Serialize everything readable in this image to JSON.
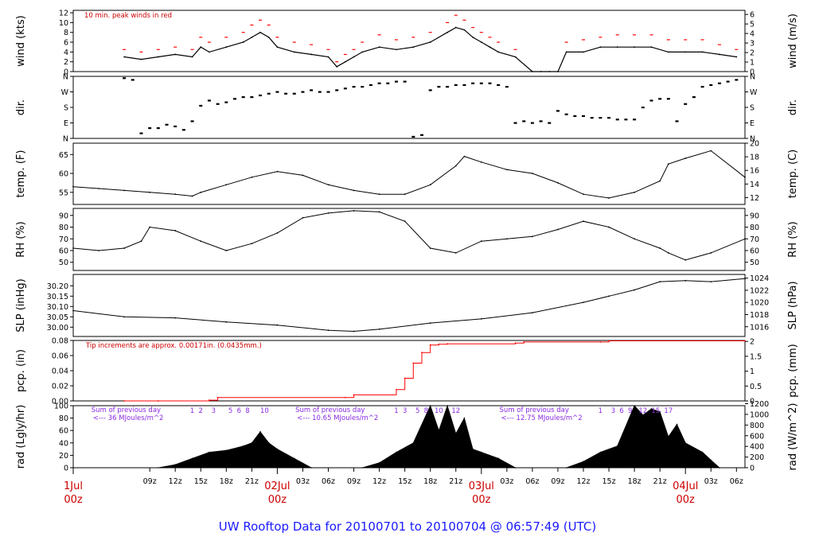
{
  "title": "UW Rooftop Data for 20100701  to  20100704 @ 06:57:49  (UTC)",
  "colors": {
    "series": "#000000",
    "peak": "#ff0000",
    "precip": "#ff0000",
    "note": "#cc0000",
    "purple": "#8a2be2",
    "title": "#1a1aff"
  },
  "x_axis": {
    "range_hours": [
      0,
      79
    ],
    "hour_ticks": [
      {
        "h": 9,
        "label": "09z"
      },
      {
        "h": 12,
        "label": "12z"
      },
      {
        "h": 15,
        "label": "15z"
      },
      {
        "h": 18,
        "label": "18z"
      },
      {
        "h": 21,
        "label": "21z"
      },
      {
        "h": 27,
        "label": "03z"
      },
      {
        "h": 30,
        "label": "06z"
      },
      {
        "h": 33,
        "label": "09z"
      },
      {
        "h": 36,
        "label": "12z"
      },
      {
        "h": 39,
        "label": "15z"
      },
      {
        "h": 42,
        "label": "18z"
      },
      {
        "h": 45,
        "label": "21z"
      },
      {
        "h": 51,
        "label": "03z"
      },
      {
        "h": 54,
        "label": "06z"
      },
      {
        "h": 57,
        "label": "09z"
      },
      {
        "h": 60,
        "label": "12z"
      },
      {
        "h": 63,
        "label": "15z"
      },
      {
        "h": 66,
        "label": "18z"
      },
      {
        "h": 69,
        "label": "21z"
      },
      {
        "h": 75,
        "label": "03z"
      },
      {
        "h": 78,
        "label": "06z"
      }
    ],
    "day_labels": [
      {
        "h": 0,
        "top": "1Jul",
        "bottom": "00z"
      },
      {
        "h": 24,
        "top": "02Jul",
        "bottom": "00z"
      },
      {
        "h": 48,
        "top": "03Jul",
        "bottom": "00z"
      },
      {
        "h": 72,
        "top": "04Jul",
        "bottom": "00z"
      }
    ]
  },
  "chart_data": [
    {
      "type": "line",
      "id": "wind",
      "ylabel": "wind (kts)",
      "ylabel_right": "wind (m/s)",
      "ylim": [
        0,
        12.5
      ],
      "yticks": [
        0,
        2,
        4,
        6,
        8,
        10,
        12
      ],
      "right_ylim": [
        0,
        6.43
      ],
      "right_yticks": [
        0,
        1,
        2,
        3,
        4,
        5,
        6
      ],
      "annotation": "10 min. peak winds in red",
      "x": [
        6,
        8,
        10,
        12,
        14,
        15,
        16,
        18,
        20,
        21,
        22,
        23,
        24,
        26,
        28,
        30,
        31,
        32,
        33,
        34,
        36,
        38,
        40,
        42,
        44,
        45,
        46,
        47,
        48,
        49,
        50,
        52,
        54,
        55,
        56,
        57,
        58,
        60,
        62,
        64,
        66,
        68,
        70,
        72,
        74,
        76,
        78
      ],
      "values": [
        3,
        2.5,
        3,
        3.5,
        3,
        5,
        4,
        5,
        6,
        7,
        8,
        7,
        5,
        4,
        3.5,
        3,
        1,
        2,
        3,
        4,
        5,
        4.5,
        5,
        6,
        8,
        9,
        8.5,
        7,
        6,
        5,
        4,
        3,
        0,
        0,
        0,
        0,
        4,
        4,
        5,
        5,
        5,
        5,
        4,
        4,
        4,
        3.5,
        3
      ],
      "peaks": [
        4.5,
        4,
        4.5,
        5,
        4.5,
        7,
        6,
        7,
        8,
        9.5,
        10.5,
        9.5,
        7,
        6,
        5.5,
        4.5,
        2,
        3.5,
        4.5,
        6,
        7.5,
        6.5,
        7,
        8,
        10,
        11.5,
        10.5,
        9,
        8,
        7,
        6,
        4.5,
        0,
        0,
        0,
        0,
        6,
        6.5,
        7,
        7.5,
        7.5,
        7.5,
        6.5,
        6.5,
        6.5,
        5.5,
        4.5
      ]
    },
    {
      "type": "scatter",
      "id": "dir",
      "ylabel": "dir.",
      "ylabel_right": "dir.",
      "ylim": [
        0,
        360
      ],
      "ytick_values": [
        0,
        90,
        180,
        270,
        360
      ],
      "ytick_labels": [
        "N",
        "E",
        "S",
        "W",
        "N"
      ],
      "x": [
        6,
        7,
        8,
        9,
        10,
        11,
        12,
        13,
        14,
        15,
        16,
        17,
        18,
        19,
        20,
        21,
        22,
        23,
        24,
        25,
        26,
        27,
        28,
        29,
        30,
        31,
        32,
        33,
        34,
        35,
        36,
        37,
        38,
        39,
        40,
        41,
        42,
        43,
        44,
        45,
        46,
        47,
        48,
        49,
        50,
        51,
        52,
        53,
        54,
        55,
        56,
        57,
        58,
        59,
        60,
        61,
        62,
        63,
        64,
        65,
        66,
        67,
        68,
        69,
        70,
        71,
        72,
        73,
        74,
        75,
        76,
        77,
        78
      ],
      "values": [
        350,
        340,
        30,
        60,
        60,
        80,
        70,
        50,
        100,
        190,
        220,
        200,
        210,
        230,
        240,
        240,
        250,
        260,
        270,
        260,
        260,
        270,
        280,
        270,
        270,
        280,
        290,
        300,
        300,
        310,
        320,
        320,
        330,
        330,
        10,
        20,
        280,
        300,
        300,
        310,
        310,
        320,
        320,
        320,
        310,
        300,
        90,
        100,
        90,
        100,
        90,
        160,
        140,
        130,
        130,
        120,
        120,
        120,
        110,
        110,
        110,
        180,
        220,
        230,
        230,
        100,
        200,
        240,
        300,
        310,
        320,
        330,
        340
      ]
    },
    {
      "type": "line",
      "id": "temp",
      "ylabel": "temp. (F)",
      "ylabel_right": "temp. (C)",
      "ylim": [
        51.8,
        68
      ],
      "yticks": [
        55,
        60,
        65
      ],
      "right_ylim": [
        11,
        20
      ],
      "right_yticks": [
        12,
        14,
        16,
        18,
        20
      ],
      "x": [
        0,
        3,
        6,
        9,
        12,
        14,
        15,
        18,
        21,
        24,
        27,
        30,
        33,
        36,
        39,
        42,
        45,
        46,
        48,
        51,
        54,
        57,
        60,
        63,
        66,
        69,
        70,
        72,
        75,
        79
      ],
      "values": [
        56.5,
        56,
        55.5,
        55,
        54.5,
        54,
        55,
        57,
        59,
        60.5,
        59.5,
        57,
        55.5,
        54.5,
        54.5,
        57,
        62,
        64.5,
        63,
        61,
        60,
        57.5,
        54.5,
        53.5,
        55,
        58,
        62.5,
        64,
        66,
        59
      ]
    },
    {
      "type": "line",
      "id": "rh",
      "ylabel": "RH (%)",
      "ylabel_right": "RH (%)",
      "ylim": [
        43,
        96
      ],
      "yticks": [
        50,
        60,
        70,
        80,
        90
      ],
      "right_yticks": [
        50,
        60,
        70,
        80,
        90
      ],
      "x": [
        0,
        3,
        6,
        8,
        9,
        12,
        15,
        18,
        21,
        24,
        27,
        30,
        33,
        36,
        39,
        42,
        45,
        48,
        51,
        54,
        57,
        60,
        63,
        66,
        69,
        70,
        72,
        75,
        79
      ],
      "values": [
        62,
        60,
        62,
        68,
        80,
        77,
        68,
        60,
        66,
        75,
        88,
        92,
        94,
        93,
        85,
        62,
        58,
        68,
        70,
        72,
        78,
        85,
        80,
        70,
        62,
        58,
        52,
        58,
        70
      ]
    },
    {
      "type": "line",
      "id": "slp",
      "ylabel": "SLP (inHg)",
      "ylabel_right": "SLP (hPa)",
      "ylim": [
        29.955,
        30.255
      ],
      "yticks": [
        30.0,
        30.05,
        30.1,
        30.15,
        30.2
      ],
      "right_ylim": [
        1014.4,
        1024.6
      ],
      "right_yticks": [
        1016,
        1018,
        1020,
        1022,
        1024
      ],
      "x": [
        0,
        6,
        12,
        18,
        24,
        30,
        33,
        36,
        42,
        48,
        54,
        60,
        63,
        66,
        69,
        72,
        75,
        79
      ],
      "values": [
        30.08,
        30.05,
        30.045,
        30.025,
        30.01,
        29.985,
        29.98,
        29.99,
        30.02,
        30.04,
        30.07,
        30.12,
        30.15,
        30.18,
        30.22,
        30.225,
        30.22,
        30.235
      ]
    },
    {
      "type": "line",
      "id": "pcp",
      "ylabel": "pcp. (in)",
      "ylabel_right": "pcp. (mm)",
      "ylim": [
        0,
        0.08
      ],
      "yticks": [
        0.0,
        0.02,
        0.04,
        0.06,
        0.08
      ],
      "right_ylim": [
        0,
        2.032
      ],
      "right_yticks": [
        0,
        0.5,
        1,
        1.5,
        2
      ],
      "annotation": "Tip increments are approx. 0.00171in. (0.0435mm.)",
      "x": [
        6,
        10,
        16,
        17,
        32,
        33,
        38,
        39,
        40,
        41,
        42,
        43,
        44,
        52,
        53,
        62,
        63,
        79
      ],
      "values": [
        0,
        0.0,
        0.001,
        0.0045,
        0.0045,
        0.008,
        0.015,
        0.03,
        0.05,
        0.064,
        0.074,
        0.075,
        0.0755,
        0.0765,
        0.078,
        0.078,
        0.0795,
        0.0795
      ]
    },
    {
      "type": "area",
      "id": "rad",
      "ylabel": "rad (Lgly/hr)",
      "ylabel_right": "rad (W/m^2)",
      "ylim": [
        0,
        100
      ],
      "yticks": [
        0,
        20,
        40,
        60,
        80,
        100
      ],
      "right_ylim": [
        0,
        1163
      ],
      "right_yticks": [
        0,
        200,
        400,
        600,
        800,
        1000,
        1200
      ],
      "x": [
        10,
        12,
        14,
        16,
        18,
        20,
        21,
        22,
        23,
        24,
        26,
        28,
        34,
        36,
        38,
        40,
        42,
        43,
        44,
        45,
        46,
        47,
        48,
        50,
        52,
        58,
        60,
        62,
        64,
        66,
        67,
        68,
        69,
        70,
        71,
        72,
        74,
        76
      ],
      "values": [
        0,
        5,
        15,
        25,
        28,
        35,
        40,
        58,
        40,
        30,
        15,
        0,
        0,
        8,
        25,
        40,
        100,
        60,
        100,
        55,
        80,
        30,
        25,
        15,
        0,
        0,
        10,
        25,
        35,
        100,
        85,
        95,
        90,
        50,
        70,
        40,
        25,
        0
      ],
      "daily_notes": [
        {
          "h": 4,
          "line1": "Sum of previous day",
          "line2": "<--- 36 MJoules/m^2"
        },
        {
          "h": 28,
          "line1": "Sum of previous day",
          "line2": "<--- 10.65 MJoules/m^2"
        },
        {
          "h": 52,
          "line1": "Sum of previous day",
          "line2": "<--- 12.75 MJoules/m^2"
        }
      ],
      "hour_marks": [
        {
          "h": 14,
          "label": "1"
        },
        {
          "h": 15,
          "label": "2"
        },
        {
          "h": 16.5,
          "label": "3"
        },
        {
          "h": 18.5,
          "label": "5"
        },
        {
          "h": 19.5,
          "label": "6"
        },
        {
          "h": 20.5,
          "label": "8"
        },
        {
          "h": 22.5,
          "label": "10"
        },
        {
          "h": 38,
          "label": "1"
        },
        {
          "h": 39,
          "label": "3"
        },
        {
          "h": 40.5,
          "label": "5"
        },
        {
          "h": 41.5,
          "label": "8"
        },
        {
          "h": 43,
          "label": "10"
        },
        {
          "h": 45,
          "label": "12"
        },
        {
          "h": 62,
          "label": "1"
        },
        {
          "h": 63.5,
          "label": "3"
        },
        {
          "h": 64.5,
          "label": "6"
        },
        {
          "h": 65.5,
          "label": "9"
        },
        {
          "h": 67,
          "label": "12"
        },
        {
          "h": 68.5,
          "label": "15"
        },
        {
          "h": 70,
          "label": "17"
        }
      ]
    }
  ]
}
